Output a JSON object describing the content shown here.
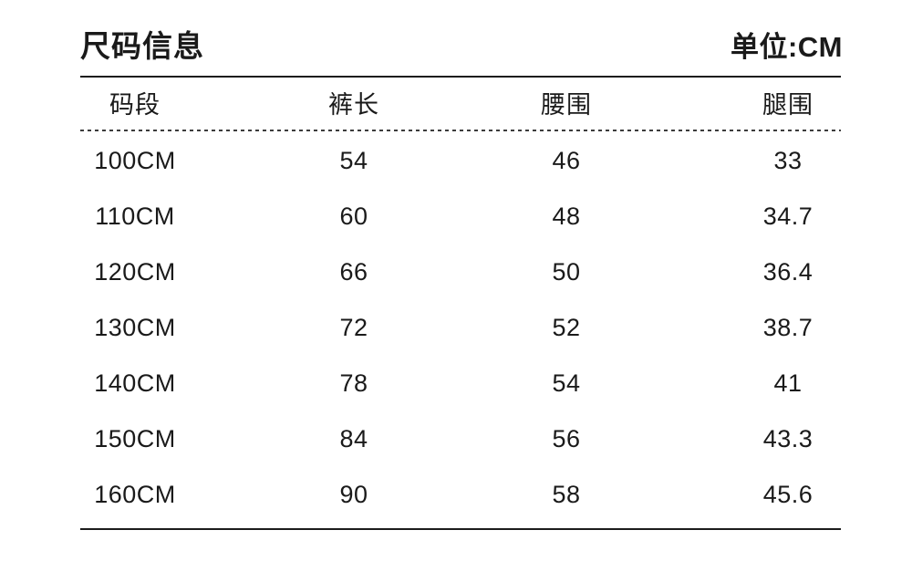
{
  "unit_label": "单位:CM",
  "colors": {
    "text": "#1a1a1a",
    "line": "#1c1c1c",
    "background": "#ffffff"
  },
  "chart_data": {
    "type": "table",
    "title": "尺码信息",
    "unit": "CM",
    "columns": [
      "码段",
      "裤长",
      "腰围",
      "腿围"
    ],
    "rows": [
      [
        "100CM",
        "54",
        "46",
        "33"
      ],
      [
        "110CM",
        "60",
        "48",
        "34.7"
      ],
      [
        "120CM",
        "66",
        "50",
        "36.4"
      ],
      [
        "130CM",
        "72",
        "52",
        "38.7"
      ],
      [
        "140CM",
        "78",
        "54",
        "41"
      ],
      [
        "150CM",
        "84",
        "56",
        "43.3"
      ],
      [
        "160CM",
        "90",
        "58",
        "45.6"
      ]
    ]
  }
}
